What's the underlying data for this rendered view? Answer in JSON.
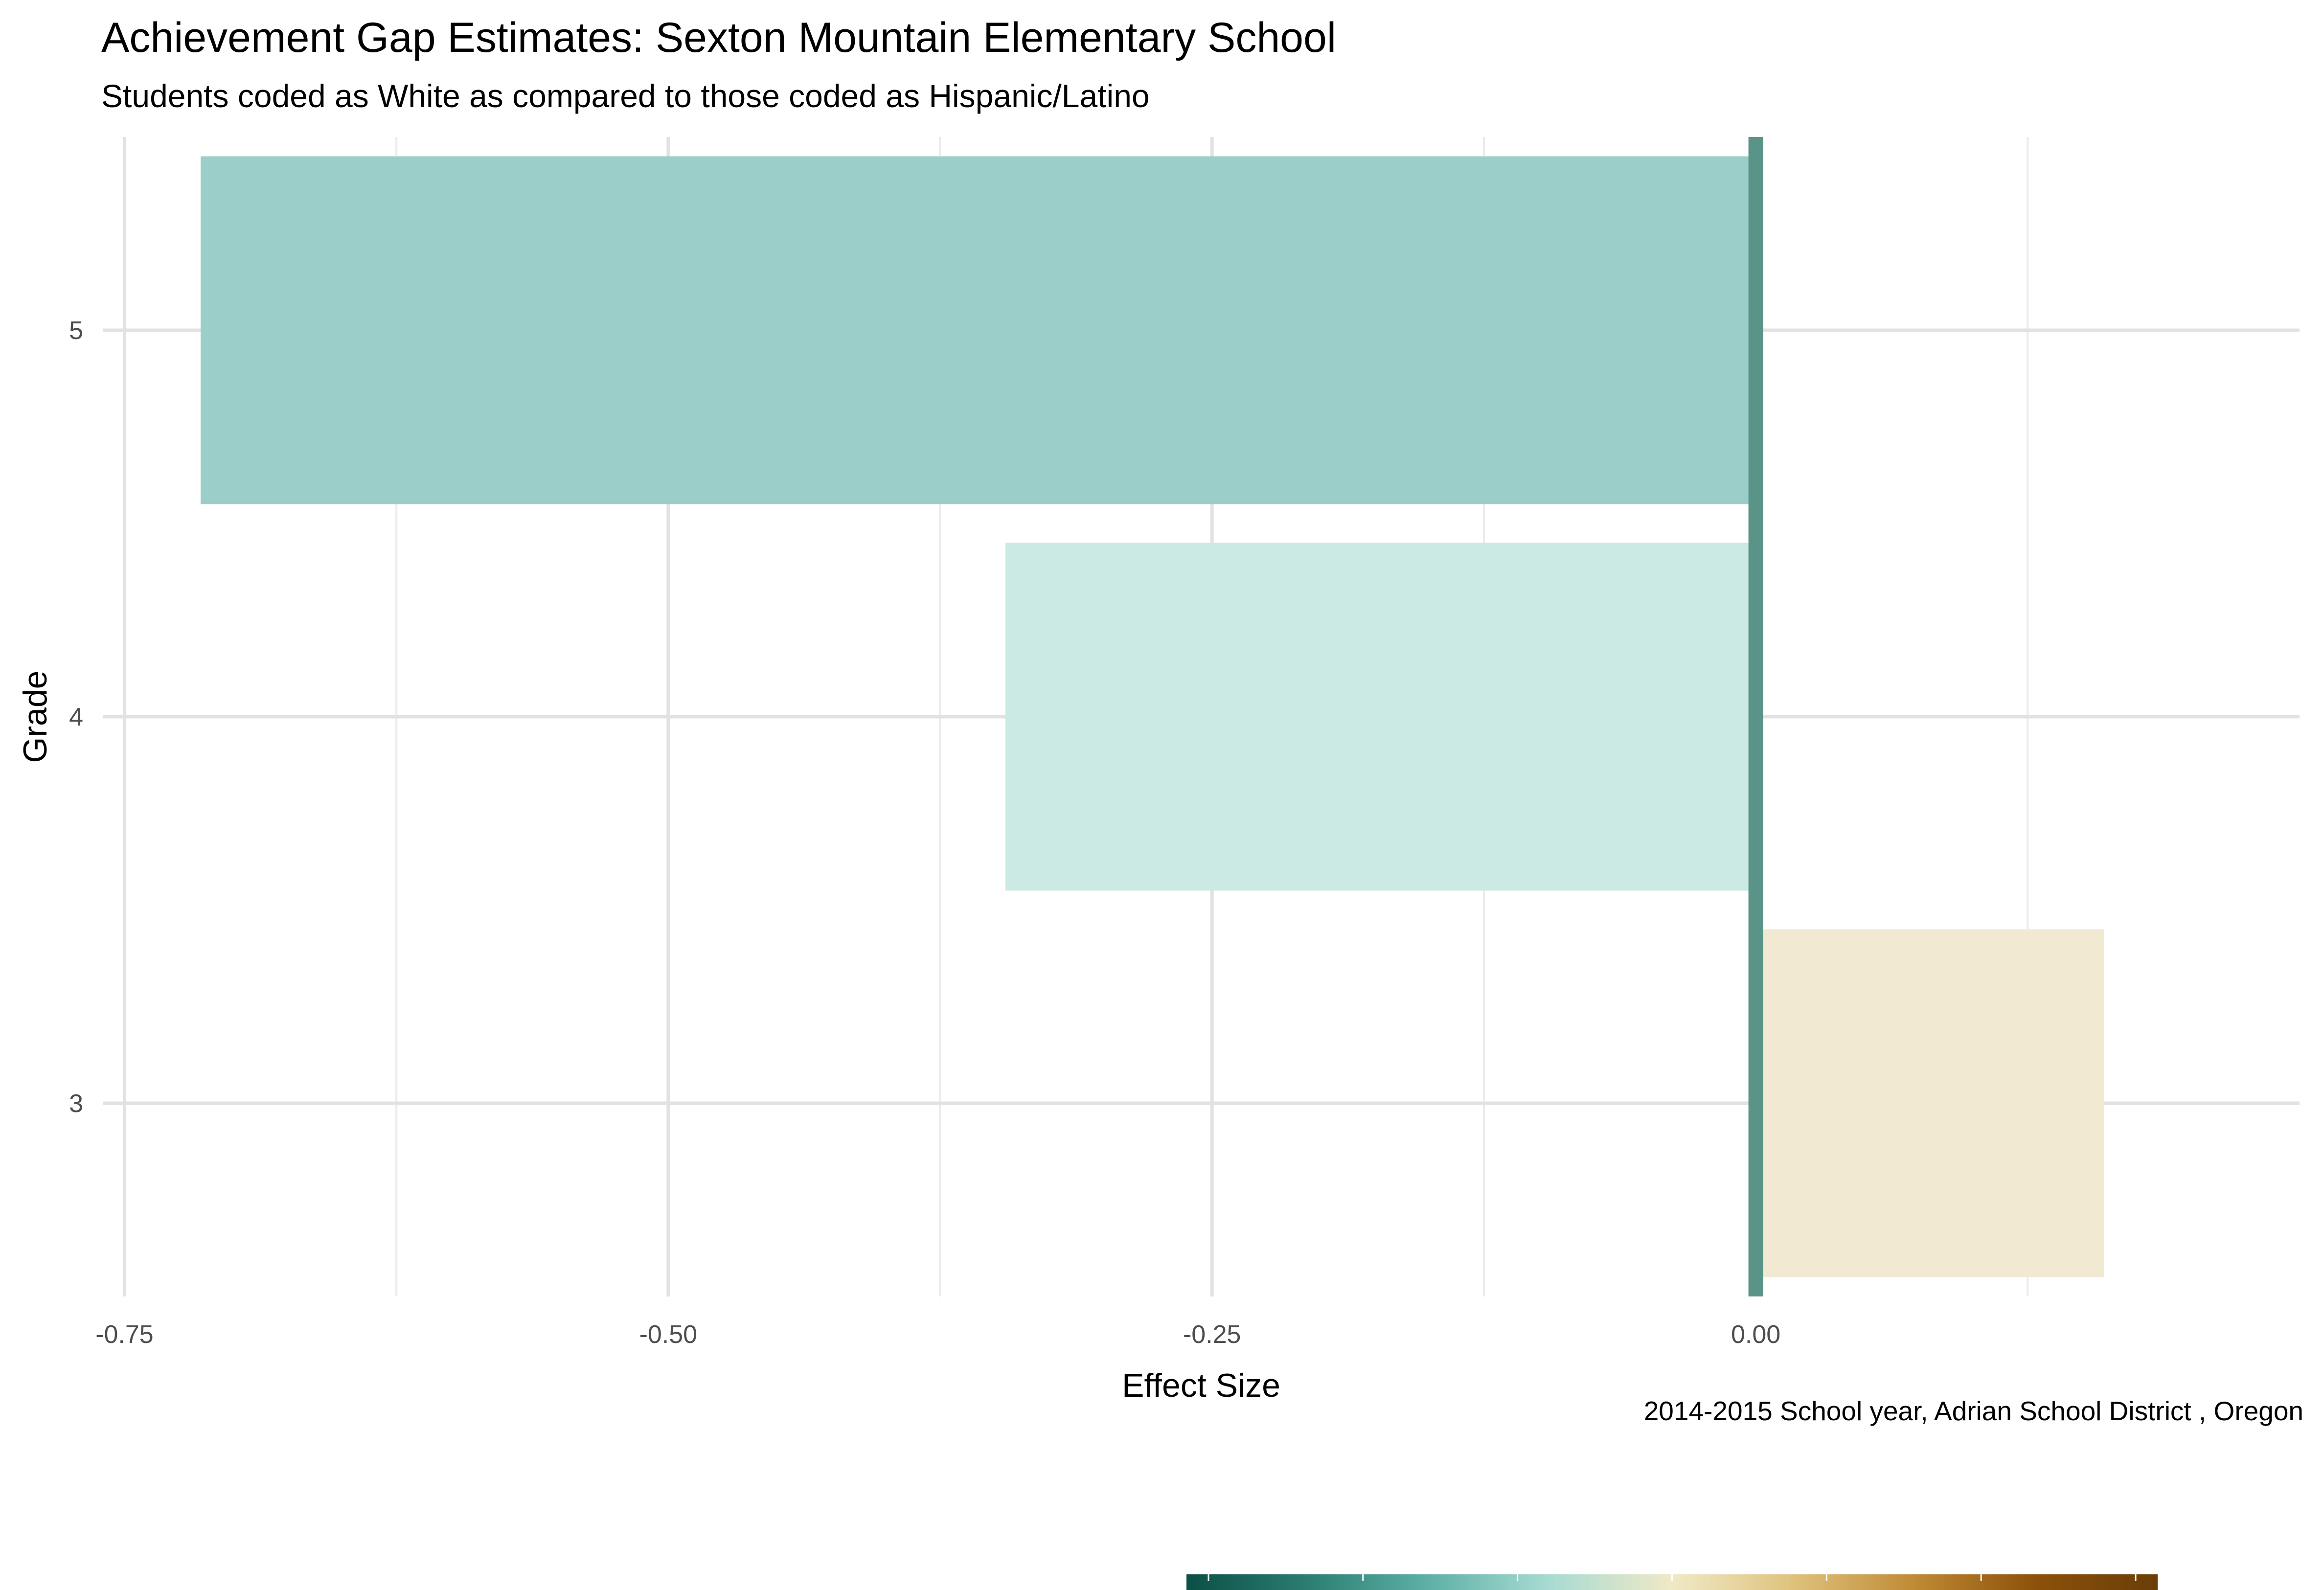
{
  "title": "Achievement Gap Estimates: Sexton Mountain Elementary School",
  "subtitle": "Students coded as White as compared to those coded as Hispanic/Latino",
  "caption": "2014-2015 School year,  Adrian School District , Oregon",
  "chart_data": {
    "type": "bar",
    "orientation": "horizontal",
    "xlabel": "Effect Size",
    "ylabel": "Grade",
    "categories": [
      "3",
      "4",
      "5"
    ],
    "values": [
      0.16,
      -0.345,
      -0.715
    ],
    "xlim": [
      -0.76,
      0.25
    ],
    "xticks": [
      -0.75,
      -0.5,
      -0.25,
      0.0
    ],
    "xtick_labels": [
      "-0.75",
      "-0.50",
      "-0.25",
      "0.00"
    ],
    "reference_line": 0.0,
    "grid": true,
    "legend": "bottom",
    "colors": {
      "bars": [
        "#f1e9d2",
        "#cbeae4",
        "#9bcec8"
      ],
      "reference_line": "#5a9488",
      "gradient": [
        "#0b4f46",
        "#2c7d72",
        "#5fb1a7",
        "#a9dbd2",
        "#f0e9c6",
        "#dfc27d",
        "#bf8a34",
        "#8c510a",
        "#6a3d08"
      ]
    }
  }
}
